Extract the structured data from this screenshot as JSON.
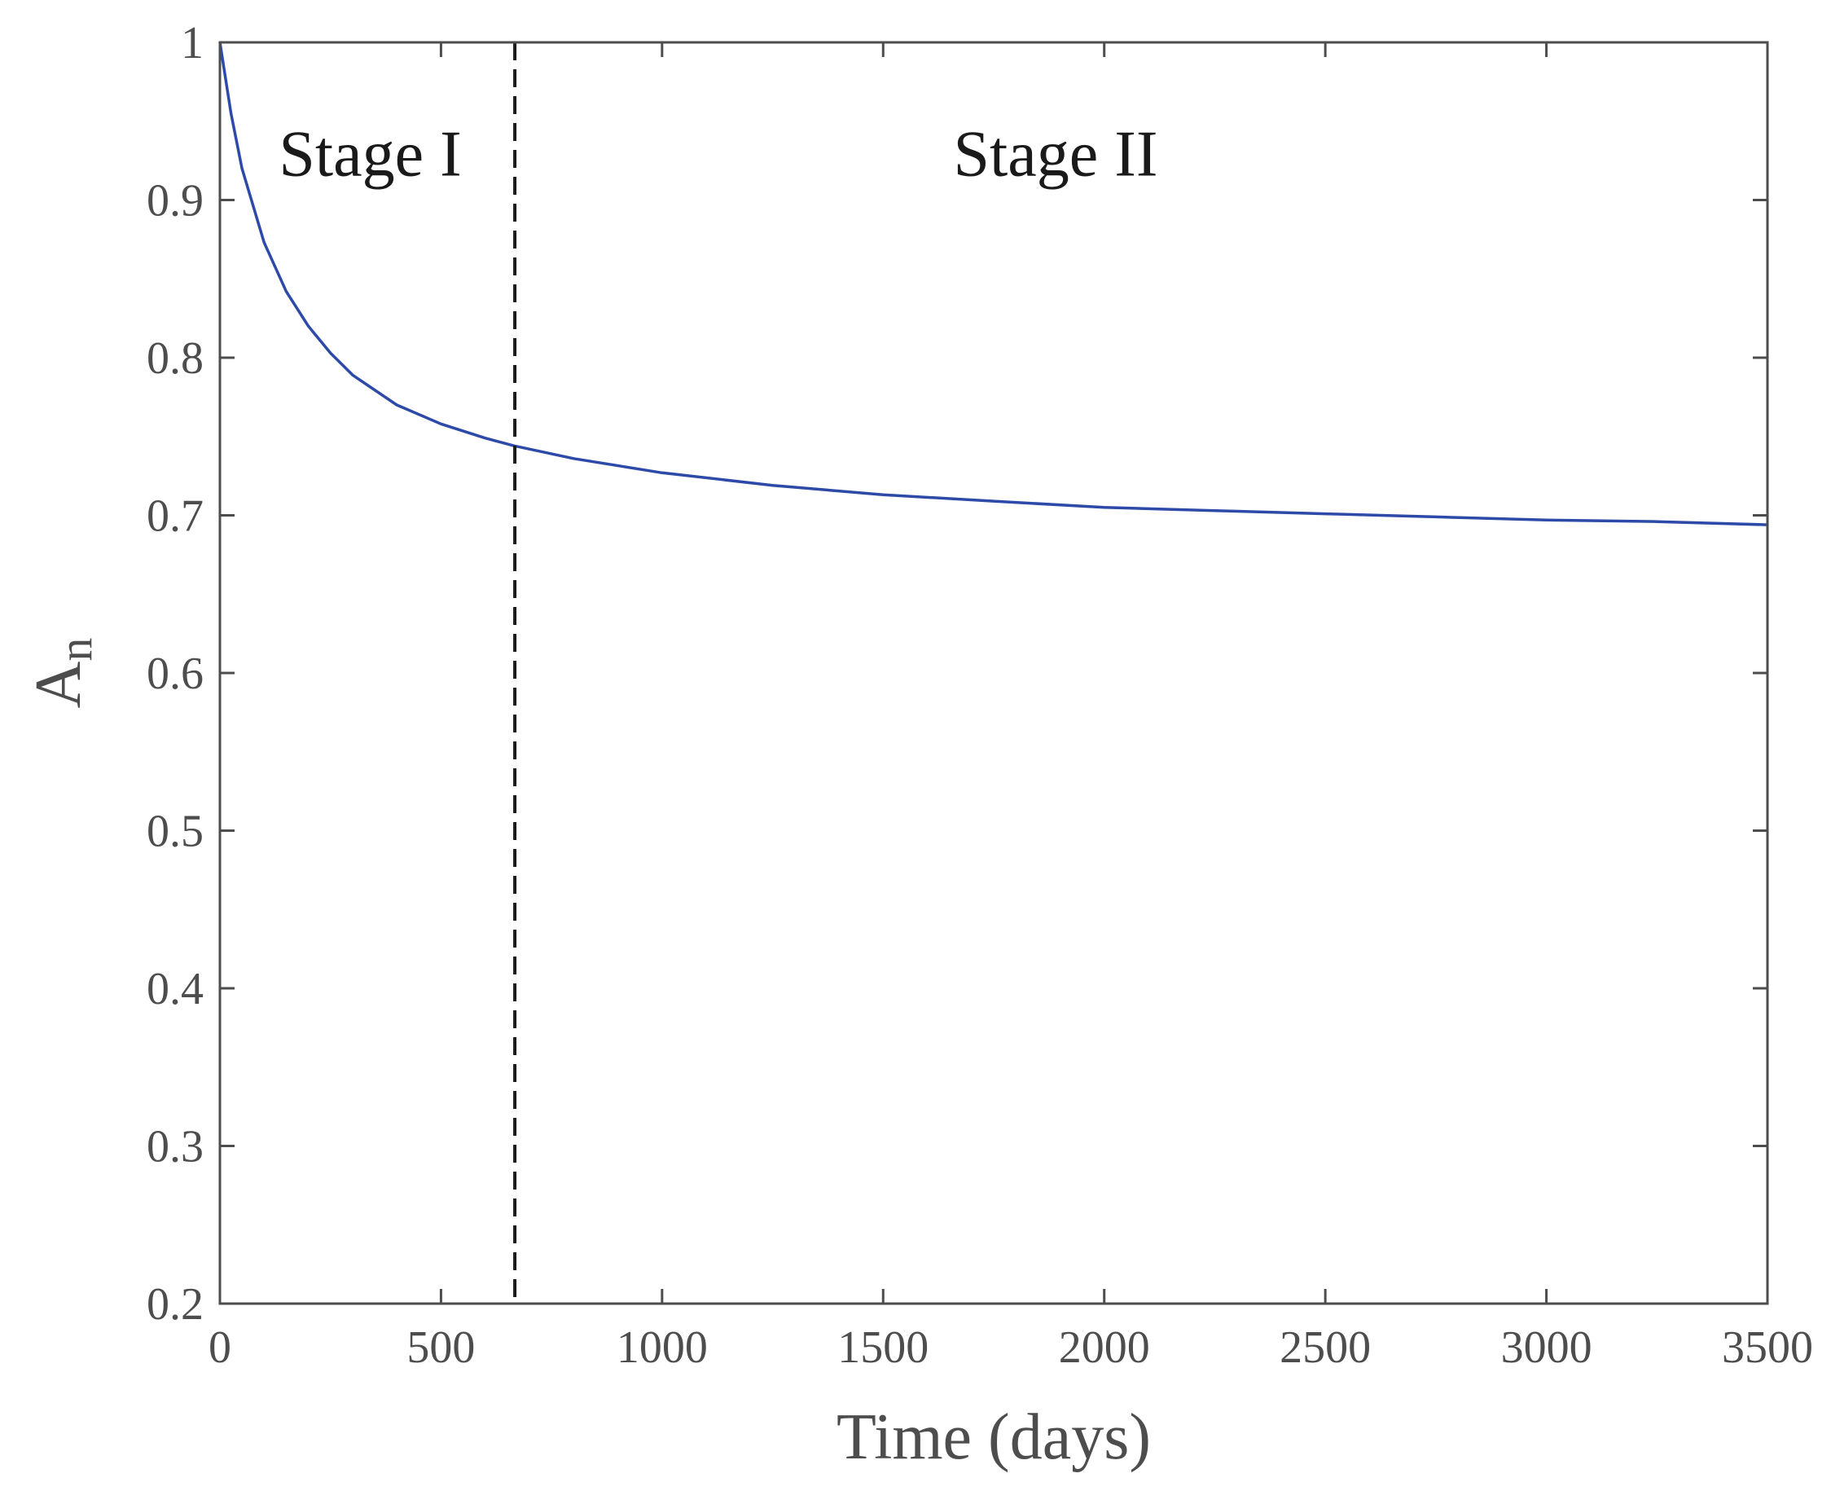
{
  "chart_data": {
    "type": "line",
    "title": "",
    "xlabel": "Time (days)",
    "ylabel_main": "A",
    "ylabel_sub": "n",
    "xlim": [
      0,
      3500
    ],
    "ylim": [
      0.2,
      1.0
    ],
    "xticks": [
      0,
      500,
      1000,
      1500,
      2000,
      2500,
      3000,
      3500
    ],
    "xtick_labels": [
      "0",
      "500",
      "1000",
      "1500",
      "2000",
      "2500",
      "3000",
      "3500"
    ],
    "yticks": [
      0.2,
      0.3,
      0.4,
      0.5,
      0.6,
      0.7,
      0.8,
      0.9,
      1.0
    ],
    "ytick_labels": [
      "0.2",
      "0.3",
      "0.4",
      "0.5",
      "0.6",
      "0.7",
      "0.8",
      "0.9",
      "1"
    ],
    "grid": false,
    "series": [
      {
        "color": "#2e4aa8",
        "x": [
          0,
          25,
          50,
          100,
          150,
          200,
          250,
          300,
          400,
          500,
          600,
          667,
          800,
          1000,
          1250,
          1500,
          1750,
          2000,
          2250,
          2500,
          2750,
          3000,
          3250,
          3500
        ],
        "y": [
          1.0,
          0.955,
          0.92,
          0.873,
          0.842,
          0.82,
          0.803,
          0.789,
          0.77,
          0.758,
          0.749,
          0.744,
          0.736,
          0.727,
          0.719,
          0.713,
          0.709,
          0.705,
          0.703,
          0.701,
          0.699,
          0.697,
          0.696,
          0.694
        ]
      }
    ],
    "vline": {
      "x": 667,
      "style": "dashed",
      "color": "#1a1a1a"
    },
    "annotations": [
      {
        "text": "Stage I",
        "x": 340,
        "y": 0.93
      },
      {
        "text": "Stage II",
        "x": 1890,
        "y": 0.93
      }
    ]
  }
}
